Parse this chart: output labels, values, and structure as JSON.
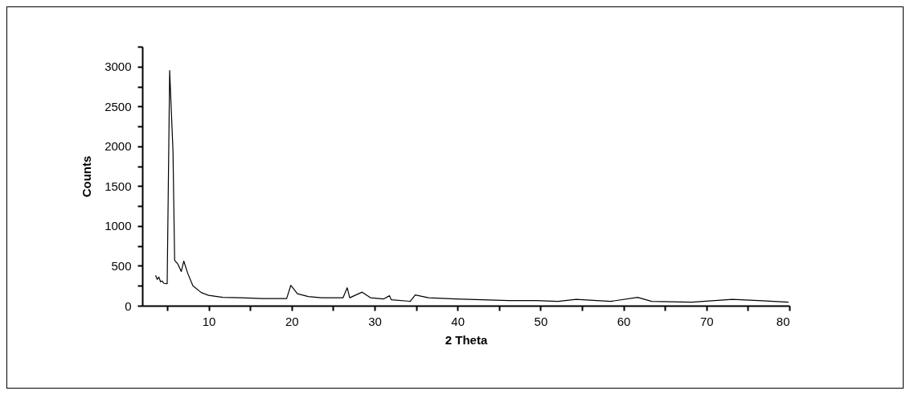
{
  "chart_data": {
    "type": "line",
    "xlabel": "2 Theta",
    "ylabel": "Counts",
    "grid": false,
    "marker": "none",
    "line_style": "solid",
    "xlim": [
      2,
      80
    ],
    "ylim": [
      0,
      3250
    ],
    "xticks": [
      {
        "value": 5,
        "label": null
      },
      10,
      {
        "value": 15,
        "label": null
      },
      20,
      {
        "value": 25,
        "label": null
      },
      30,
      {
        "value": 35,
        "label": null
      },
      40,
      {
        "value": 45,
        "label": null
      },
      50,
      {
        "value": 55,
        "label": null
      },
      60,
      {
        "value": 65,
        "label": null
      },
      70,
      {
        "value": 75,
        "label": null
      },
      80
    ],
    "yticks": [
      0,
      {
        "value": 250,
        "label": null
      },
      500,
      {
        "value": 750,
        "label": null
      },
      1000,
      {
        "value": 1250,
        "label": null
      },
      1500,
      {
        "value": 1750,
        "label": null
      },
      2000,
      {
        "value": 2250,
        "label": null
      },
      2500,
      {
        "value": 2750,
        "label": null
      },
      3000,
      {
        "value": 3250,
        "label": null
      }
    ],
    "series": [
      {
        "color": "#000000",
        "x": [
          3.6,
          3.8,
          4.0,
          4.2,
          4.4,
          4.6,
          5.0,
          5.3,
          5.7,
          5.9,
          6.3,
          6.7,
          7.0,
          7.5,
          8.1,
          9.1,
          10.0,
          11.7,
          13.9,
          16.5,
          19.4,
          19.9,
          20.7,
          22.0,
          23.6,
          26.2,
          26.7,
          27.0,
          28.5,
          29.5,
          31.1,
          31.8,
          32.0,
          34.3,
          34.9,
          36.5,
          39.8,
          43.0,
          46.2,
          49.5,
          52.1,
          54.3,
          58.5,
          61.7,
          63.4,
          68.2,
          73.1,
          76.3,
          79.9
        ],
        "values": [
          380,
          330,
          360,
          300,
          310,
          280,
          275,
          2950,
          1940,
          570,
          520,
          430,
          560,
          400,
          250,
          165,
          130,
          105,
          100,
          90,
          90,
          255,
          150,
          115,
          100,
          100,
          225,
          100,
          170,
          100,
          85,
          125,
          75,
          55,
          135,
          100,
          85,
          75,
          65,
          65,
          55,
          80,
          55,
          105,
          55,
          45,
          80,
          65,
          45
        ]
      }
    ]
  }
}
